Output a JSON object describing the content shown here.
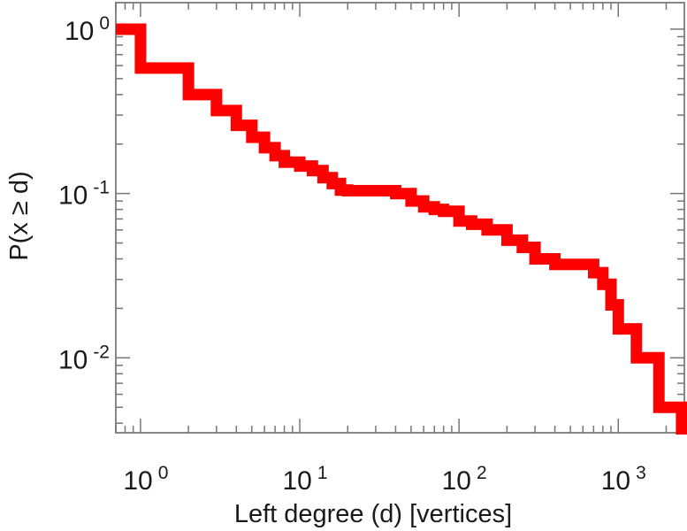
{
  "chart_data": {
    "type": "line",
    "title": "",
    "xlabel": "Left degree (d) [vertices]",
    "ylabel": "P(x ≥ d)",
    "x_scale": "log",
    "y_scale": "log",
    "xlim": [
      0.7,
      2600
    ],
    "ylim": [
      0.0035,
      1.45
    ],
    "grid": false,
    "legend": "none",
    "series_color": "#ff0000",
    "x_ticks": [
      {
        "value": 1,
        "base": "10",
        "exp": "0"
      },
      {
        "value": 10,
        "base": "10",
        "exp": "1"
      },
      {
        "value": 100,
        "base": "10",
        "exp": "2"
      },
      {
        "value": 1000,
        "base": "10",
        "exp": "3"
      }
    ],
    "y_ticks": [
      {
        "value": 1,
        "base": "10",
        "exp": "0"
      },
      {
        "value": 0.1,
        "base": "10",
        "exp": "-1"
      },
      {
        "value": 0.01,
        "base": "10",
        "exp": "-2"
      }
    ],
    "series": [
      {
        "style": "step",
        "x": [
          0.7,
          1,
          2,
          3,
          4,
          5,
          6,
          7,
          8,
          10,
          12,
          14,
          16,
          18,
          20,
          30,
          40,
          50,
          60,
          70,
          80,
          100,
          120,
          150,
          200,
          250,
          300,
          400,
          500,
          600,
          700,
          800,
          900,
          1000,
          1300,
          1800,
          2500
        ],
        "y": [
          1.0,
          0.58,
          0.4,
          0.32,
          0.26,
          0.22,
          0.19,
          0.17,
          0.155,
          0.147,
          0.138,
          0.125,
          0.115,
          0.105,
          0.104,
          0.104,
          0.1,
          0.09,
          0.083,
          0.08,
          0.078,
          0.068,
          0.065,
          0.06,
          0.052,
          0.047,
          0.04,
          0.037,
          0.037,
          0.037,
          0.033,
          0.028,
          0.021,
          0.015,
          0.01,
          0.005,
          0.005
        ]
      }
    ]
  }
}
